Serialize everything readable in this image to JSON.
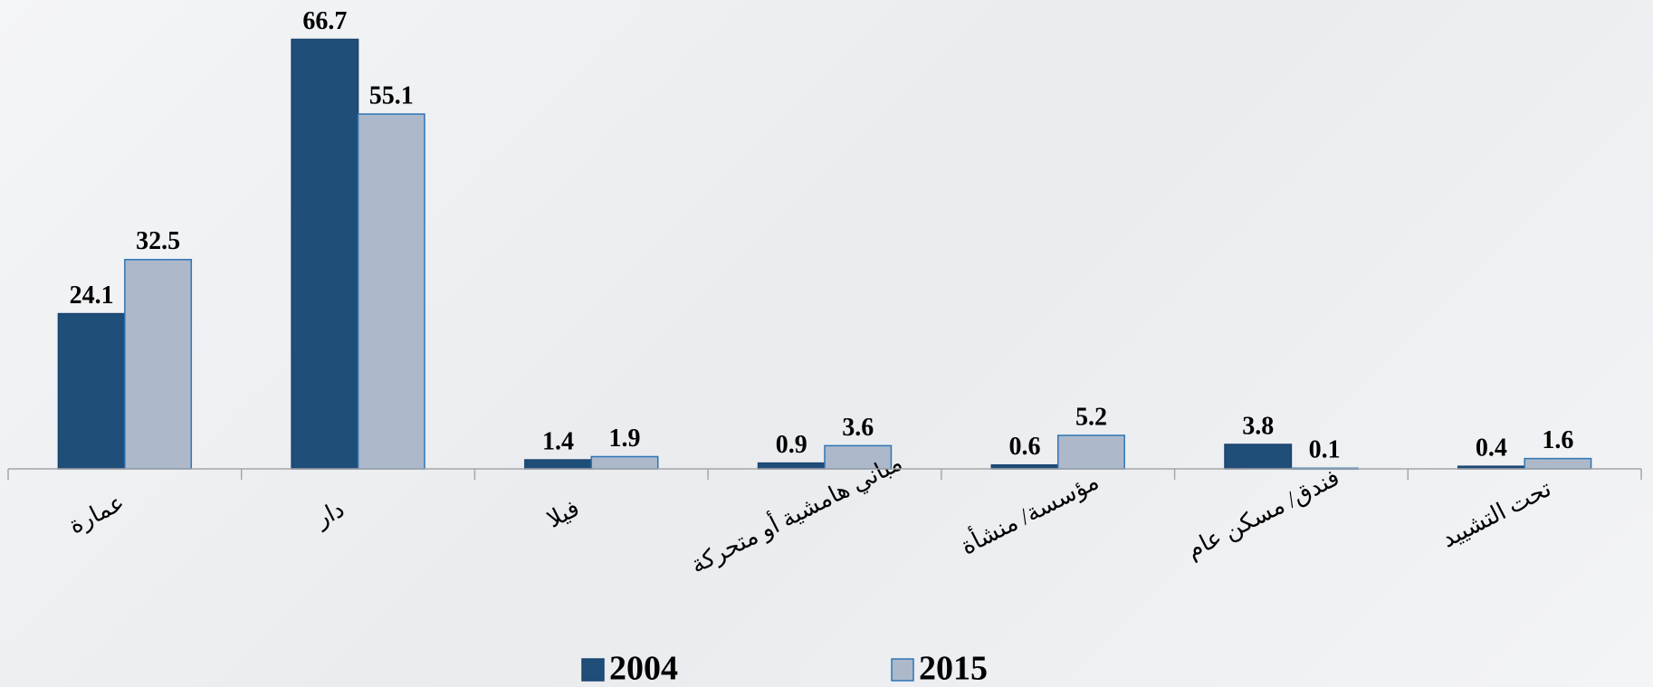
{
  "chart_data": {
    "type": "bar",
    "categories": [
      "عمارة",
      "دار",
      "فيلا",
      "مباني هامشية أو متحركة",
      "مؤسسة/ منشأة",
      "فندق/ مسكن عام",
      "تحت التشييد"
    ],
    "series": [
      {
        "name": "2004",
        "color": "#1f4e79",
        "values": [
          24.1,
          66.7,
          1.4,
          0.9,
          0.6,
          3.8,
          0.4
        ]
      },
      {
        "name": "2015",
        "color": "#adb9ca",
        "values": [
          32.5,
          55.1,
          1.9,
          3.6,
          5.2,
          0.1,
          1.6
        ]
      }
    ],
    "ylim": [
      0,
      70
    ],
    "legend": "bottom"
  }
}
